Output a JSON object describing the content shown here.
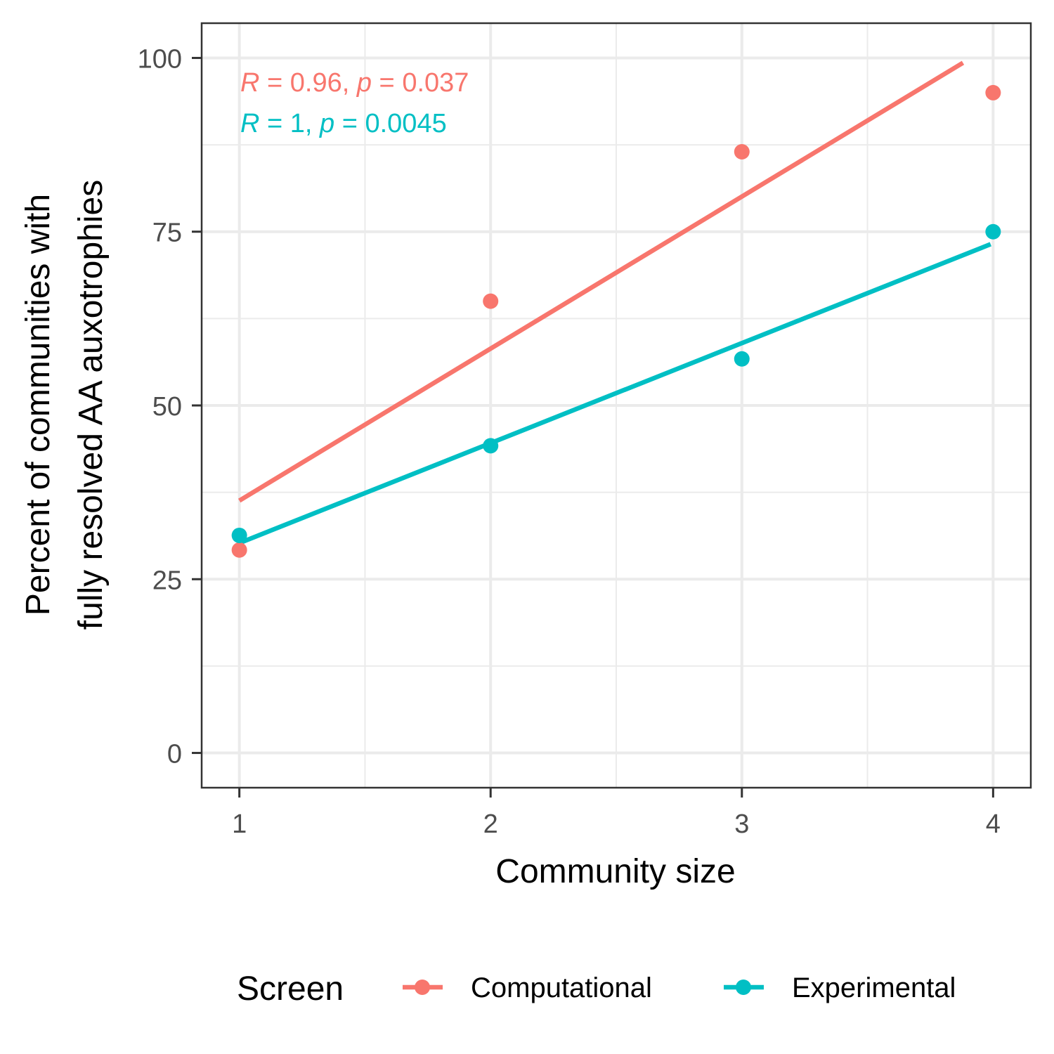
{
  "colors": {
    "computational": "#F8766D",
    "experimental": "#00BFC4",
    "grid": "#EBEBEB",
    "panel_border": "#333333",
    "tick_text": "#4D4D4D"
  },
  "chart_data": {
    "type": "scatter",
    "xlabel": "Community size",
    "ylabel_lines": [
      "Percent of communities with",
      "fully resolved AA auxotrophies"
    ],
    "xlim": [
      0.85,
      4.15
    ],
    "ylim": [
      -5,
      105
    ],
    "x_ticks": [
      1,
      2,
      3,
      4
    ],
    "y_ticks": [
      0,
      25,
      50,
      75,
      100
    ],
    "grid": true,
    "legend": {
      "title": "Screen",
      "position": "bottom",
      "entries": [
        "Computational",
        "Experimental"
      ]
    },
    "series": [
      {
        "name": "Computational",
        "color_key": "computational",
        "points": [
          [
            1,
            29.2
          ],
          [
            2,
            65
          ],
          [
            3,
            86.5
          ],
          [
            4,
            95
          ]
        ],
        "fit": [
          [
            1,
            36.3
          ],
          [
            3.88,
            99.3
          ]
        ],
        "stat": {
          "r_label": "R",
          "r_value": "0.96",
          "p_label": "p",
          "p_value": "0.037"
        }
      },
      {
        "name": "Experimental",
        "color_key": "experimental",
        "points": [
          [
            1,
            31.3
          ],
          [
            2,
            44.2
          ],
          [
            3,
            56.7
          ],
          [
            4,
            75
          ]
        ],
        "fit": [
          [
            1,
            30.2
          ],
          [
            3.99,
            73.2
          ]
        ],
        "stat": {
          "r_label": "R",
          "r_value": "1",
          "p_label": "p",
          "p_value": "0.0045"
        }
      }
    ]
  }
}
